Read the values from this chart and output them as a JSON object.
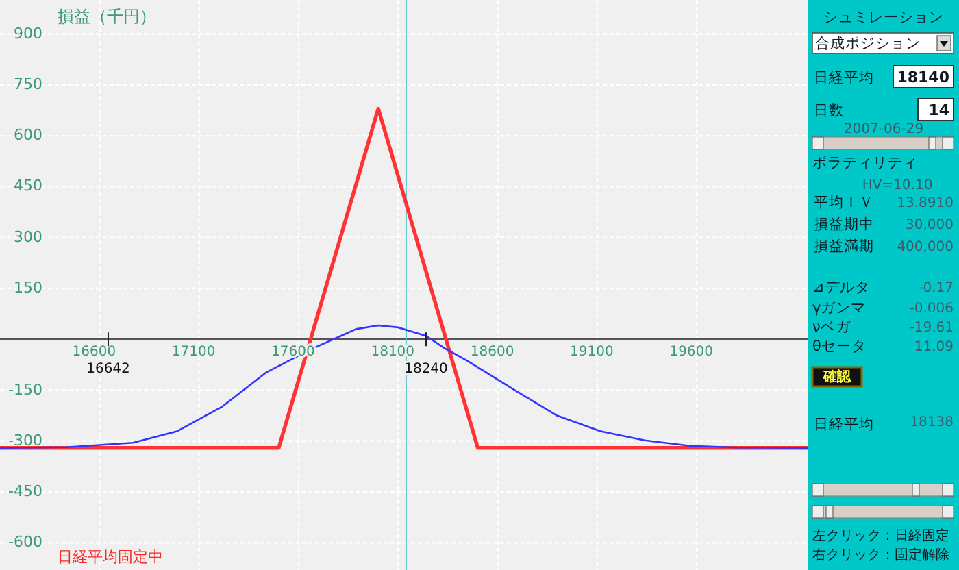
{
  "chart_data": [
    {
      "type": "line",
      "ylabel": "損益（千円）",
      "xlim": [
        16100,
        20160
      ],
      "ylim": [
        -680,
        1000
      ],
      "xticks": [
        16600,
        17100,
        17600,
        18100,
        18600,
        19100,
        19600
      ],
      "yticks": [
        -600,
        -450,
        -300,
        -150,
        150,
        300,
        450,
        600,
        750,
        900
      ],
      "grid": true,
      "series": [
        {
          "color": "#ff3333",
          "x": [
            16100,
            17500,
            18000,
            18500,
            20160
          ],
          "values": [
            -320,
            -320,
            680,
            -320,
            -320
          ]
        },
        {
          "color": "#3333ff",
          "x": [
            16100,
            16432,
            16768,
            16990,
            17217,
            17439,
            17660,
            17888,
            18000,
            18100,
            18240,
            18332,
            18446,
            18667,
            18895,
            19117,
            19338,
            19566,
            19800,
            20160
          ],
          "values": [
            -320,
            -318,
            -305,
            -271,
            -198,
            -97,
            -30,
            30,
            41,
            35,
            10,
            -26,
            -63,
            -143,
            -224,
            -271,
            -298,
            -314,
            -319,
            -320
          ]
        }
      ],
      "ref_lines": [
        {
          "axis": "x",
          "value": 18140,
          "color": "#5cc8d0"
        }
      ],
      "annotations": [
        "16642",
        "18240",
        "日経平均固定中"
      ]
    },
    {
      "type": "other",
      "title": "シュミレーション",
      "annotations": [
        "合成ポジション",
        "日経平均",
        "18140",
        "日数",
        "14",
        "2007-06-29",
        "ボラティリティ",
        "HV=10.10",
        "平均ＩＶ",
        "13.8910",
        "損益期中",
        "30,000",
        "損益満期",
        "400,000",
        "⊿デルタ",
        "-0.17",
        "γガンマ",
        "-0.006",
        "νベガ",
        "-19.61",
        "θセータ",
        "11.09",
        "確認",
        "日経平均",
        "18138",
        "左クリック：日経固定",
        "右クリック：固定解除"
      ]
    }
  ]
}
